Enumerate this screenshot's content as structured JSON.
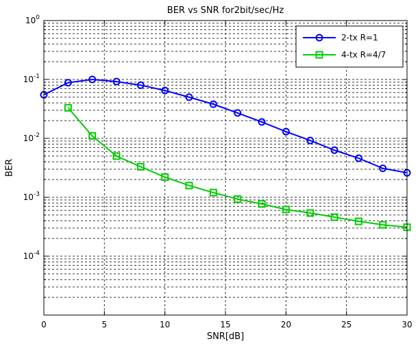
{
  "figure": {
    "background": "#ffffff",
    "axis_color": "#000000",
    "grid_color": "#333333"
  },
  "chart_data": {
    "type": "line",
    "title": "BER vs SNR for2bit/sec/Hz",
    "xlabel": "SNR[dB]",
    "ylabel": "BER",
    "xlim": [
      0,
      30
    ],
    "ylim_log10": [
      -5,
      0
    ],
    "x_ticks": [
      0,
      5,
      10,
      15,
      20,
      25,
      30
    ],
    "y_tick_exponents": [
      0,
      -1,
      -2,
      -3,
      -4
    ],
    "grid": "dashed",
    "legend_position": "top-right",
    "series": [
      {
        "name": "2-tx  R=1",
        "color": "#0000ff",
        "marker": "circle",
        "x": [
          0,
          2,
          4,
          6,
          8,
          10,
          12,
          14,
          16,
          18,
          20,
          22,
          24,
          26,
          28,
          30
        ],
        "y": [
          0.055,
          0.088,
          0.1,
          0.092,
          0.08,
          0.065,
          0.05,
          0.038,
          0.027,
          0.019,
          0.013,
          0.0092,
          0.0063,
          0.0046,
          0.0031,
          0.0026
        ]
      },
      {
        "name": "4-tx  R=4/7",
        "color": "#00cc00",
        "marker": "square",
        "x": [
          2,
          4,
          6,
          8,
          10,
          12,
          14,
          16,
          18,
          20,
          22,
          24,
          26,
          28,
          30
        ],
        "y": [
          0.033,
          0.011,
          0.005,
          0.0033,
          0.0022,
          0.00158,
          0.0012,
          0.00093,
          0.00077,
          0.00062,
          0.00054,
          0.00046,
          0.00039,
          0.00034,
          0.00031
        ]
      }
    ]
  }
}
